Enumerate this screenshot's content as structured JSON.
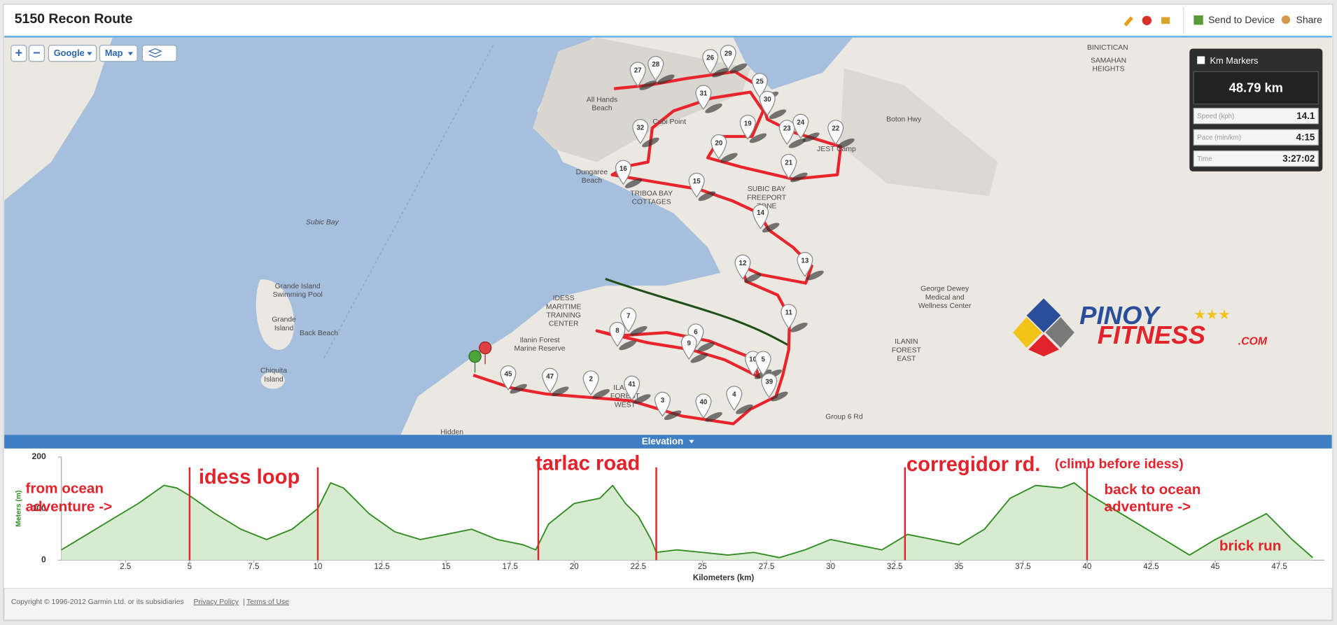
{
  "header": {
    "title": "5150 Recon Route",
    "send": "Send to Device",
    "share": "Share"
  },
  "map": {
    "controls": [
      "+",
      "−",
      "Google",
      "Map"
    ],
    "places": [
      {
        "lines": [
          "Subic Bay"
        ]
      },
      {
        "lines": [
          "Grande Island",
          "Swimming Pool"
        ]
      },
      {
        "lines": [
          "Grande",
          "Island"
        ]
      },
      {
        "lines": [
          "Back Beach"
        ]
      },
      {
        "lines": [
          "Chiquita",
          "Island"
        ]
      },
      {
        "lines": [
          "All Hands",
          "Beach"
        ]
      },
      {
        "lines": [
          "Cubi Point"
        ]
      },
      {
        "lines": [
          "Dungaree",
          "Beach"
        ]
      },
      {
        "lines": [
          "TRIBOA BAY",
          "COTTAGES"
        ]
      },
      {
        "lines": [
          "SUBIC BAY",
          "FREEPORT",
          "ZONE"
        ]
      },
      {
        "lines": [
          "IDESS",
          "MARITIME",
          "TRAINING",
          "CENTER"
        ]
      },
      {
        "lines": [
          "Ilanin Forest",
          "Marine Reserve"
        ]
      },
      {
        "lines": [
          "ILANIN",
          "FOREST",
          "WEST"
        ]
      },
      {
        "lines": [
          "ILANIN",
          "FOREST",
          "EAST"
        ]
      },
      {
        "lines": [
          "George Dewey",
          "Medical and",
          "Wellness Center"
        ]
      },
      {
        "lines": [
          "JEST Camp"
        ]
      },
      {
        "lines": [
          "Boton Hwy"
        ]
      },
      {
        "lines": [
          "BINICTICAN"
        ]
      },
      {
        "lines": [
          "SAMAHAN",
          "HEIGHTS"
        ]
      },
      {
        "lines": [
          "Hidden"
        ]
      },
      {
        "lines": [
          "Group 6 Rd"
        ]
      }
    ],
    "pins": [
      "27",
      "28",
      "26",
      "29",
      "25",
      "31",
      "30",
      "32",
      "19",
      "23",
      "24",
      "22",
      "20",
      "21",
      "16",
      "15",
      "14",
      "13",
      "12",
      "11",
      "7",
      "8",
      "6",
      "9",
      "10",
      "5",
      "39",
      "45",
      "47",
      "2",
      "41",
      "3",
      "40",
      "4"
    ],
    "logo": {
      "top": "PINOY",
      "bottom": "FITNESS",
      "suffix": ".COM"
    }
  },
  "stats": {
    "toggle": "Km Markers",
    "distance": "48.79 km",
    "rows": [
      {
        "label": "Speed (kph)",
        "value": "14.1"
      },
      {
        "label": "Pace (min/km)",
        "value": "4:15"
      },
      {
        "label": "Time",
        "value": "3:27:02"
      }
    ]
  },
  "elevation_bar": "Elevation",
  "chart_data": {
    "type": "area",
    "xlabel": "Kilometers (km)",
    "ylabel": "Meters (m)",
    "color": "#2f8a1f",
    "fill": "#d6ebcf",
    "x": [
      0,
      1,
      2,
      3,
      4,
      4.5,
      5,
      6,
      7,
      8,
      9,
      10,
      10.5,
      11,
      12,
      13,
      14,
      15,
      16,
      17,
      18,
      18.5,
      19,
      20,
      21,
      21.5,
      22,
      22.5,
      23,
      23.2,
      24,
      25,
      26,
      27,
      28,
      29,
      30,
      31,
      32,
      33,
      34,
      35,
      36,
      37,
      38,
      39,
      39.5,
      40,
      41,
      42,
      43,
      44,
      45,
      46,
      47,
      48,
      48.8
    ],
    "values": [
      20,
      50,
      80,
      110,
      145,
      140,
      125,
      90,
      60,
      40,
      60,
      100,
      150,
      140,
      90,
      55,
      40,
      50,
      60,
      40,
      30,
      20,
      70,
      110,
      120,
      145,
      110,
      85,
      40,
      15,
      20,
      15,
      10,
      15,
      5,
      20,
      40,
      30,
      20,
      50,
      40,
      30,
      60,
      120,
      145,
      140,
      150,
      130,
      100,
      70,
      40,
      10,
      40,
      65,
      90,
      40,
      5
    ],
    "xlim": [
      0,
      49.25
    ],
    "ylim": [
      0,
      200
    ],
    "xticks": [
      2.5,
      5,
      7.5,
      10,
      12.5,
      15,
      17.5,
      20,
      22.5,
      25,
      27.5,
      30,
      32.5,
      35,
      37.5,
      40,
      42.5,
      45,
      47.5
    ],
    "yticks": [
      0,
      100,
      200
    ],
    "markers": [
      5,
      10,
      18.6,
      23.2,
      32.9,
      40
    ],
    "annotations": [
      "from ocean",
      "adventure ->",
      "idess loop",
      "tarlac road",
      "corregidor rd.",
      "(climb before idess)",
      "back to ocean",
      "adventure ->",
      "brick run"
    ]
  },
  "footer": {
    "copyright": "Copyright © 1996-2012 Garmin Ltd. or its subsidiaries",
    "privacy": "Privacy Policy",
    "sep": "|",
    "terms": "Terms of Use"
  }
}
